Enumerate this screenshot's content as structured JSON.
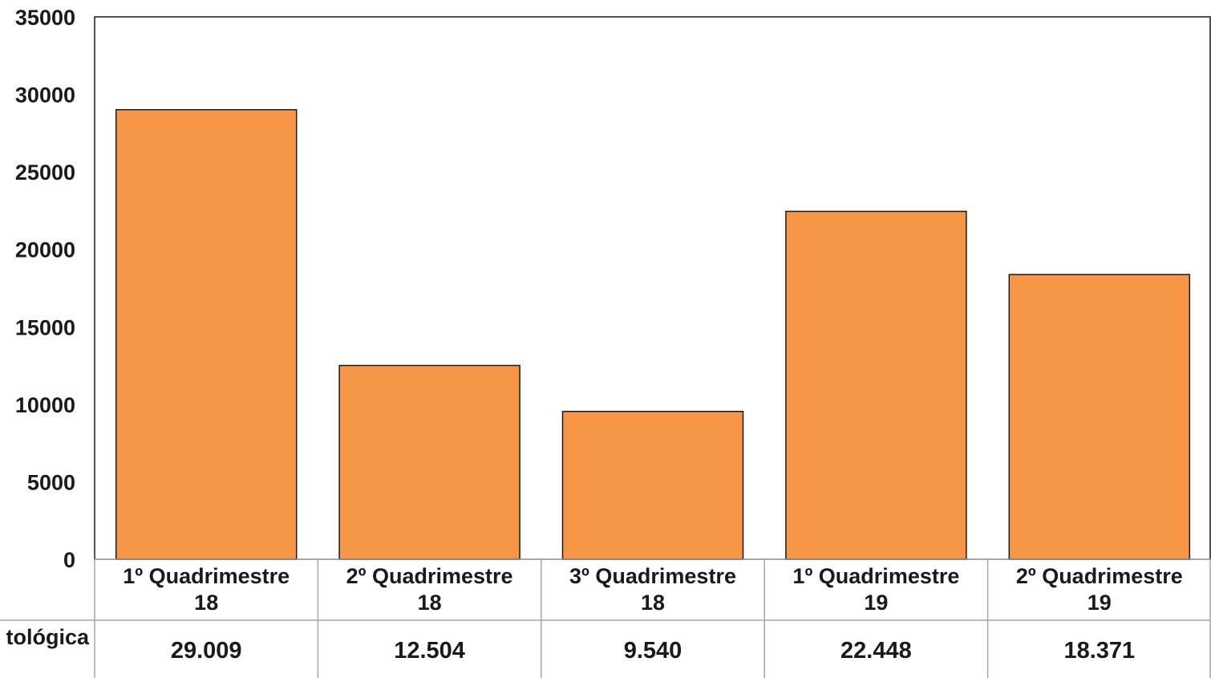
{
  "chart_data": {
    "type": "bar",
    "title": "",
    "xlabel": "",
    "ylabel": "",
    "categories": [
      [
        "1º Quadrimestre",
        "18"
      ],
      [
        "2º Quadrimestre",
        "18"
      ],
      [
        "3º Quadrimestre",
        "18"
      ],
      [
        "1º Quadrimestre",
        "19"
      ],
      [
        "2º Quadrimestre",
        "19"
      ]
    ],
    "series": [
      {
        "name": "tológica",
        "values": [
          29009,
          12504,
          9540,
          22448,
          18371
        ],
        "value_labels": [
          "29.009",
          "12.504",
          "9.540",
          "22.448",
          "18.371"
        ]
      }
    ],
    "ylim": [
      0,
      35000
    ],
    "yticks": [
      0,
      5000,
      10000,
      15000,
      20000,
      25000,
      30000,
      35000
    ],
    "ytick_labels": [
      "0",
      "5000",
      "10000",
      "15000",
      "20000",
      "25000",
      "30000",
      "35000"
    ],
    "grid": false,
    "legend": "none",
    "data_table": true,
    "bar_color": "#F79646",
    "bar_edge_color": "#1a1a1a"
  }
}
